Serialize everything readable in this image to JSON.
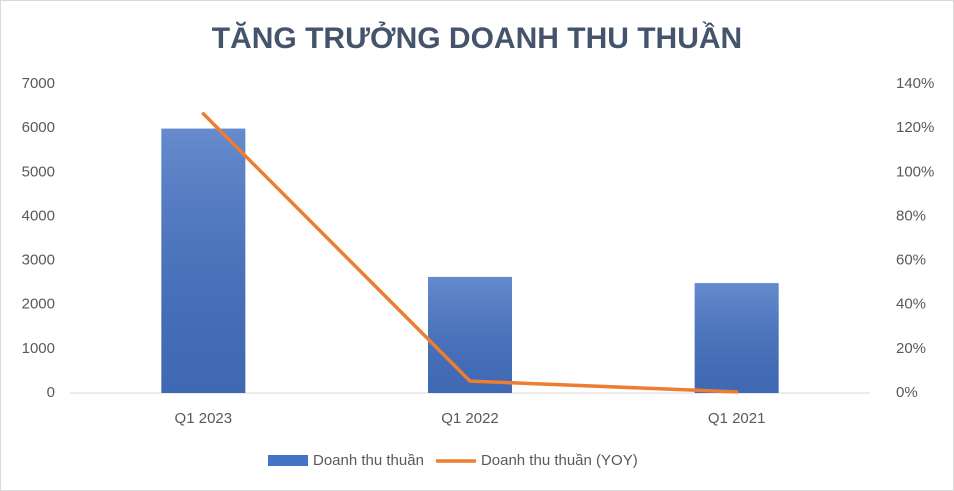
{
  "chart_data": {
    "type": "combo",
    "title": "TĂNG TRƯỞNG DOANH THU THUẦN",
    "categories": [
      "Q1 2023",
      "Q1 2022",
      "Q1 2021"
    ],
    "series": [
      {
        "name": "Doanh thu thuần",
        "type": "bar",
        "color": "#4472c4",
        "values": [
          5990,
          2630,
          2490
        ]
      },
      {
        "name": "Doanh thu thuần (YOY)",
        "type": "line",
        "axis": "y2",
        "color": "#ed7d31",
        "values": [
          126.5,
          5.4,
          0.5
        ]
      }
    ],
    "ylim": [
      0,
      7000
    ],
    "yticks": [
      0,
      1000,
      2000,
      3000,
      4000,
      5000,
      6000,
      7000
    ],
    "y2lim": [
      0,
      140
    ],
    "y2ticks": [
      {
        "value": 0,
        "label": "0%"
      },
      {
        "value": 20,
        "label": "20%"
      },
      {
        "value": 40,
        "label": "40%"
      },
      {
        "value": 60,
        "label": "60%"
      },
      {
        "value": 80,
        "label": "80%"
      },
      {
        "value": 100,
        "label": "100%"
      },
      {
        "value": 120,
        "label": "120%"
      },
      {
        "value": 140,
        "label": "140%"
      }
    ],
    "legend": "bottom",
    "grid": false
  }
}
